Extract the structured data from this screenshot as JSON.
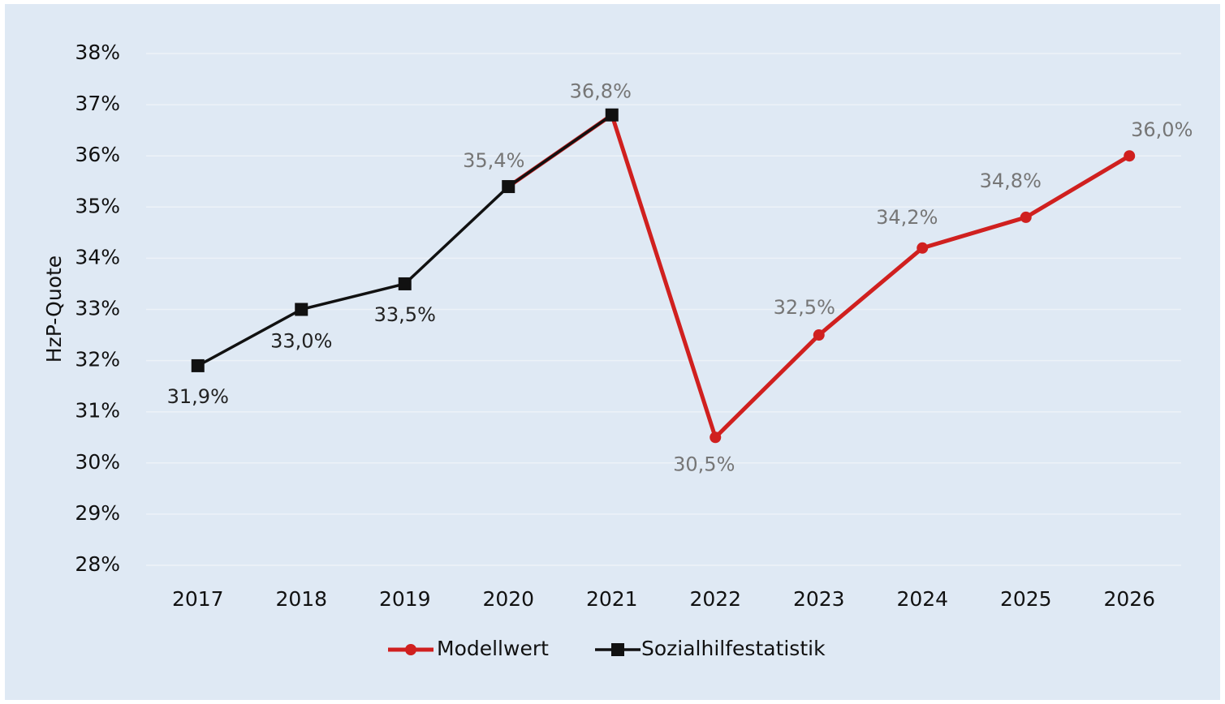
{
  "chart_data": {
    "type": "line",
    "ylabel": "HzP-Quote",
    "categories": [
      "2017",
      "2018",
      "2019",
      "2020",
      "2021",
      "2022",
      "2023",
      "2024",
      "2025",
      "2026"
    ],
    "series": [
      {
        "name": "Modellwert",
        "color": "#d0201f",
        "marker": "circle",
        "values": [
          null,
          null,
          null,
          35.4,
          36.8,
          30.5,
          32.5,
          34.2,
          34.8,
          36.0
        ],
        "value_labels": [
          null,
          null,
          null,
          "35,4%",
          "36,8%",
          "30,5%",
          "32,5%",
          "34,2%",
          "34,8%",
          "36,0%"
        ]
      },
      {
        "name": "Sozialhilfestatistik",
        "color": "#111111",
        "marker": "square",
        "values": [
          31.9,
          33.0,
          33.5,
          35.4,
          36.8,
          null,
          null,
          null,
          null,
          null
        ],
        "value_labels": [
          "31,9%",
          "33,0%",
          "33,5%",
          null,
          null,
          null,
          null,
          null,
          null,
          null
        ]
      }
    ],
    "ylim": [
      28,
      38
    ],
    "yticks": [
      {
        "value": 28,
        "label": "28%"
      },
      {
        "value": 29,
        "label": "29%"
      },
      {
        "value": 30,
        "label": "30%"
      },
      {
        "value": 31,
        "label": "31%"
      },
      {
        "value": 32,
        "label": "32%"
      },
      {
        "value": 33,
        "label": "33%"
      },
      {
        "value": 34,
        "label": "34%"
      },
      {
        "value": 35,
        "label": "35%"
      },
      {
        "value": 36,
        "label": "36%"
      },
      {
        "value": 37,
        "label": "37%"
      },
      {
        "value": 38,
        "label": "38%"
      }
    ],
    "grid": true,
    "legend": "bottom"
  }
}
